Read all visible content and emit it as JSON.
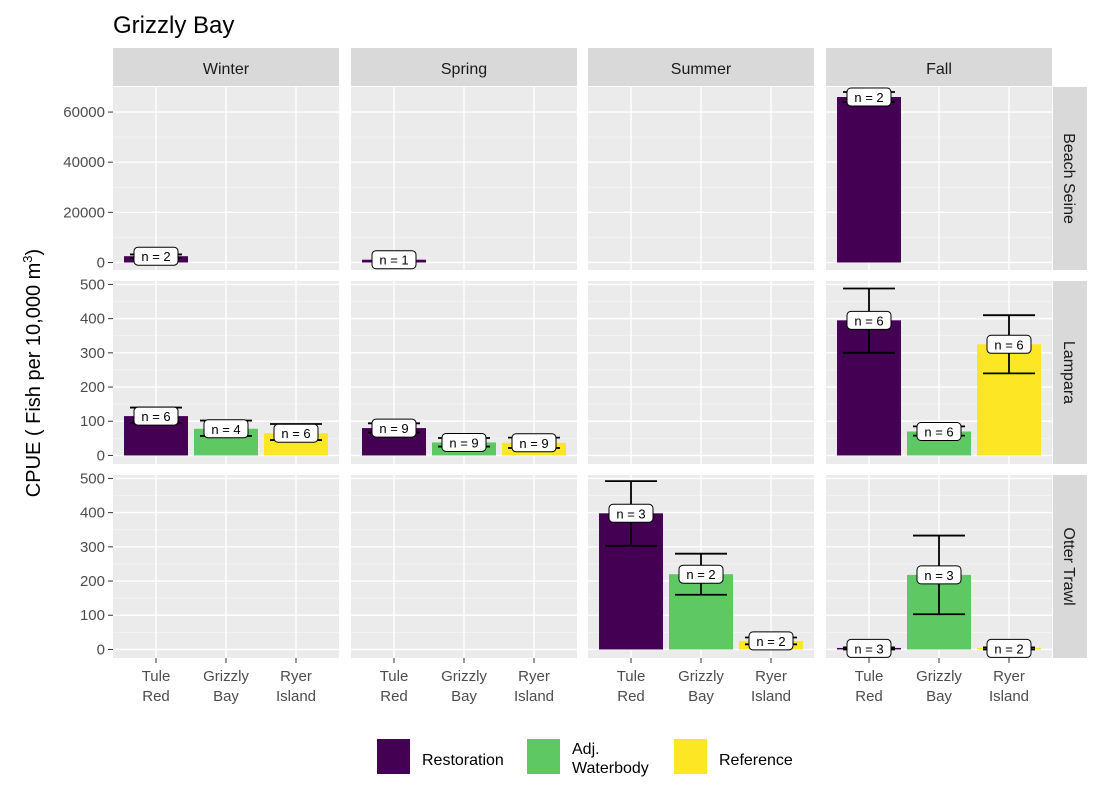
{
  "chart_data": {
    "type": "bar",
    "title": "Grizzly Bay",
    "ylabel": "CPUE ( Fish per 10,000 m",
    "ylabel_superscript": "3",
    "ylabel_close": ")",
    "columns": [
      "Winter",
      "Spring",
      "Summer",
      "Fall"
    ],
    "rows": [
      "Beach Seine",
      "Lampara",
      "Otter Trawl"
    ],
    "categories": [
      {
        "id": "TR",
        "lines": [
          "Tule",
          "Red"
        ],
        "group": "Restoration"
      },
      {
        "id": "GB",
        "lines": [
          "Grizzly",
          "Bay"
        ],
        "group": "Adj. Waterbody"
      },
      {
        "id": "RI",
        "lines": [
          "Ryer",
          "Island"
        ],
        "group": "Reference"
      }
    ],
    "legend": [
      {
        "key": "Restoration",
        "lines": [
          "Restoration"
        ],
        "color": "#440154"
      },
      {
        "key": "Adj. Waterbody",
        "lines": [
          "Adj.",
          "Waterbody"
        ],
        "color": "#5ec962"
      },
      {
        "key": "Reference",
        "lines": [
          "Reference"
        ],
        "color": "#fde725"
      }
    ],
    "legend_position": "bottom",
    "grid": true,
    "row_scales": [
      {
        "ylim": [
          -3000,
          70000
        ],
        "ticks": [
          0,
          20000,
          40000,
          60000
        ]
      },
      {
        "ylim": [
          -25,
          510
        ],
        "ticks": [
          0,
          100,
          200,
          300,
          400,
          500
        ]
      },
      {
        "ylim": [
          -25,
          510
        ],
        "ticks": [
          0,
          100,
          200,
          300,
          400,
          500
        ]
      }
    ],
    "panels": [
      {
        "row": 0,
        "col": 0,
        "bars": [
          {
            "cat": "TR",
            "value": 2500,
            "lo": 1800,
            "hi": 3200,
            "n_label": "n = 2"
          }
        ]
      },
      {
        "row": 0,
        "col": 1,
        "bars": [
          {
            "cat": "TR",
            "value": 1100,
            "n_label": "n = 1"
          }
        ]
      },
      {
        "row": 0,
        "col": 2,
        "bars": []
      },
      {
        "row": 0,
        "col": 3,
        "bars": [
          {
            "cat": "TR",
            "value": 66000,
            "lo": 64000,
            "hi": 68000,
            "n_label": "n = 2"
          }
        ]
      },
      {
        "row": 1,
        "col": 0,
        "bars": [
          {
            "cat": "TR",
            "value": 115,
            "lo": 95,
            "hi": 140,
            "n_label": "n = 6"
          },
          {
            "cat": "GB",
            "value": 78,
            "lo": 57,
            "hi": 102,
            "n_label": "n = 4"
          },
          {
            "cat": "RI",
            "value": 65,
            "lo": 45,
            "hi": 92,
            "n_label": "n = 6"
          }
        ]
      },
      {
        "row": 1,
        "col": 1,
        "bars": [
          {
            "cat": "TR",
            "value": 80,
            "lo": 67,
            "hi": 94,
            "n_label": "n = 9"
          },
          {
            "cat": "GB",
            "value": 38,
            "lo": 26,
            "hi": 51,
            "n_label": "n = 9"
          },
          {
            "cat": "RI",
            "value": 37,
            "lo": 22,
            "hi": 52,
            "n_label": "n = 9"
          }
        ]
      },
      {
        "row": 1,
        "col": 2,
        "bars": []
      },
      {
        "row": 1,
        "col": 3,
        "bars": [
          {
            "cat": "TR",
            "value": 395,
            "lo": 300,
            "hi": 488,
            "n_label": "n = 6"
          },
          {
            "cat": "GB",
            "value": 70,
            "lo": 58,
            "hi": 85,
            "n_label": "n = 6"
          },
          {
            "cat": "RI",
            "value": 325,
            "lo": 240,
            "hi": 410,
            "n_label": "n = 6"
          }
        ]
      },
      {
        "row": 2,
        "col": 0,
        "bars": []
      },
      {
        "row": 2,
        "col": 1,
        "bars": []
      },
      {
        "row": 2,
        "col": 2,
        "bars": [
          {
            "cat": "TR",
            "value": 398,
            "lo": 303,
            "hi": 492,
            "n_label": "n = 3"
          },
          {
            "cat": "GB",
            "value": 220,
            "lo": 160,
            "hi": 280,
            "n_label": "n = 2"
          },
          {
            "cat": "RI",
            "value": 25,
            "lo": 15,
            "hi": 35,
            "n_label": "n = 2"
          }
        ]
      },
      {
        "row": 2,
        "col": 3,
        "bars": [
          {
            "cat": "TR",
            "value": 3,
            "lo": 0,
            "hi": 6,
            "n_label": "n = 3"
          },
          {
            "cat": "GB",
            "value": 218,
            "lo": 103,
            "hi": 333,
            "n_label": "n = 3"
          },
          {
            "cat": "RI",
            "value": 3,
            "lo": 0,
            "hi": 6,
            "n_label": "n = 2"
          }
        ]
      }
    ]
  }
}
